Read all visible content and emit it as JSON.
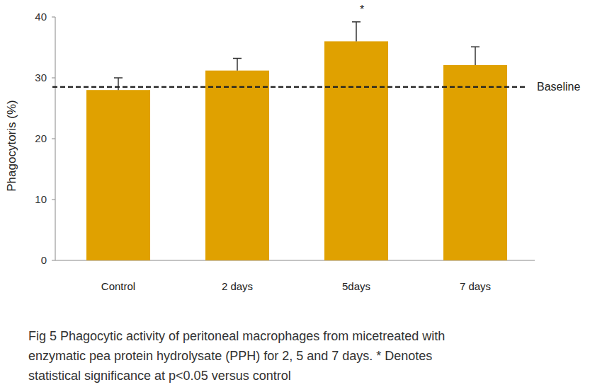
{
  "chart_data": {
    "type": "bar",
    "y_label": "Phagocytoris (%)",
    "categories": [
      "Control",
      "2 days",
      "5days",
      "7 days"
    ],
    "values": [
      28,
      31.2,
      36,
      32.1
    ],
    "errors": [
      2,
      2,
      3.2,
      3
    ],
    "color": "#e0a100",
    "ylim": [
      0,
      40
    ],
    "yticks": [
      0,
      10,
      20,
      30,
      40
    ],
    "grid": false,
    "baseline": {
      "value": 28.5,
      "label": "Baseline"
    },
    "annotations": [
      {
        "text": "*",
        "category": "5days"
      }
    ],
    "caption": [
      "Fig 5 Phagocytic activity of peritoneal macrophages from micetreated with",
      "enzymatic pea protein hydrolysate (PPH) for 2, 5 and 7 days. * Denotes",
      "statistical significance at p<0.05 versus control"
    ]
  }
}
